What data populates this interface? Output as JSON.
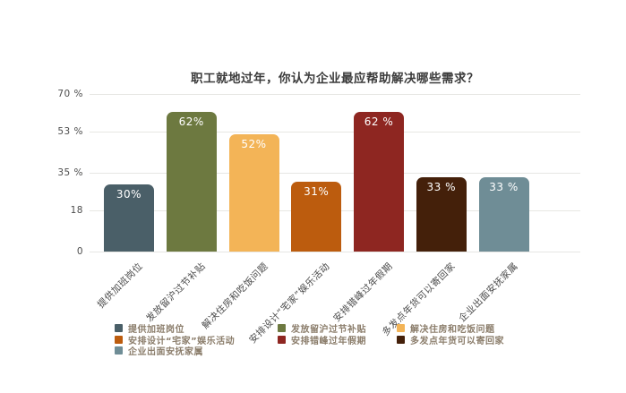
{
  "chart_data": {
    "type": "bar",
    "title": "职工就地过年，你认为企业最应帮助解决哪些需求？",
    "categories": [
      "提供加班岗位",
      "发放留沪过节补贴",
      "解决住房和吃饭问题",
      "安排设计“宅家”娱乐活动",
      "安排错峰过年假期",
      "多发点年货可以寄回家",
      "企业出面安抚家属"
    ],
    "values": [
      30,
      62,
      52,
      31,
      62,
      33,
      33
    ],
    "value_labels": [
      "30%",
      "62%",
      "52%",
      "31%",
      "62 %",
      "33 %",
      "33 %"
    ],
    "colors": [
      "#4a5f68",
      "#6d7940",
      "#f3b457",
      "#bc5c0e",
      "#8e2621",
      "#44200a",
      "#6f8d96"
    ],
    "y_ticks": [
      {
        "value": 70,
        "label": "70 %"
      },
      {
        "value": 53,
        "label": "53 %"
      },
      {
        "value": 35,
        "label": "35 %"
      },
      {
        "value": 18,
        "label": "18"
      },
      {
        "value": 0,
        "label": "0"
      }
    ],
    "ylim": [
      0,
      70
    ],
    "xlabel": "",
    "ylabel": "",
    "grid": true,
    "legend_position": "bottom"
  }
}
